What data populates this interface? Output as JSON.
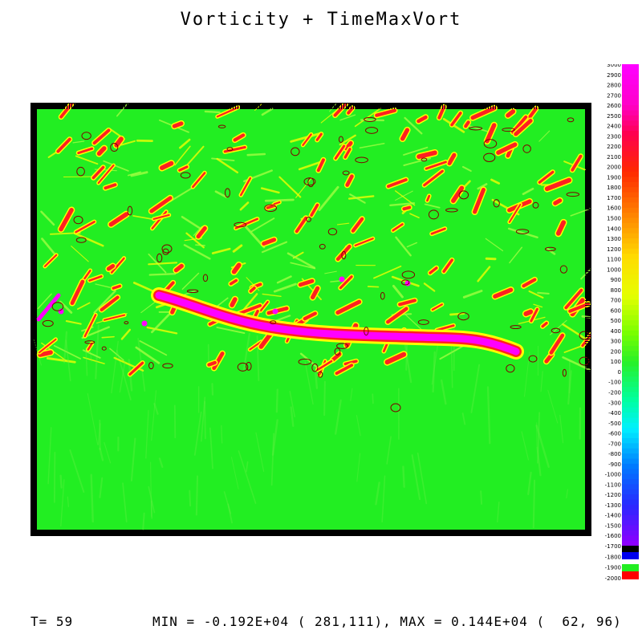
{
  "title": "Vorticity + TimeMaxVort",
  "footer": {
    "time_label": "T= 59",
    "minmax": "MIN = -0.192E+04 ( 281,111), MAX = 0.144E+04 (  62, 96)"
  },
  "colors": {
    "background_field": "#22ee22",
    "high_vorticity": "#ff00ff",
    "moderate_vorticity": "#ff2020",
    "low_vorticity": "#ffff00",
    "contour": "#800000"
  },
  "chart_data": {
    "type": "heatmap",
    "title": "Vorticity + TimeMaxVort",
    "time_step": 59,
    "min": {
      "value": -1920,
      "i": 281,
      "j": 111
    },
    "max": {
      "value": 1440,
      "i": 62,
      "j": 96
    },
    "colorbar": {
      "range": [
        -2000,
        3000
      ],
      "tick_labels": [
        "3000",
        "2900",
        "2800",
        "2700",
        "2600",
        "2500",
        "2400",
        "2300",
        "2200",
        "2100",
        "2000",
        "1900",
        "1800",
        "1700",
        "1600",
        "1500",
        "1400",
        "1300",
        "1200",
        "1100",
        "1000",
        "900",
        "800",
        "700",
        "600",
        "500",
        "400",
        "300",
        "200",
        "100",
        "0",
        "-100",
        "-200",
        "-300",
        "-400",
        "-500",
        "-600",
        "-700",
        "-800",
        "-900",
        "-1000",
        "-1100",
        "-1200",
        "-1300",
        "-1400",
        "-1500",
        "-1600",
        "-1700",
        "-1800",
        "-1900",
        "-2000"
      ],
      "visible_labels": [
        {
          "text": "3000",
          "v": 3000
        },
        {
          "text": "2900",
          "v": 2900
        },
        {
          "text": "2800",
          "v": 2800
        },
        {
          "text": "2700",
          "v": 2700
        },
        {
          "text": "2600",
          "v": 2600
        },
        {
          "text": "2500",
          "v": 2500
        },
        {
          "text": "2400",
          "v": 2400
        },
        {
          "text": "2300",
          "v": 2300
        },
        {
          "text": "2200",
          "v": 2200
        },
        {
          "text": "2100",
          "v": 2100
        },
        {
          "text": "2000",
          "v": 2000
        },
        {
          "text": "1900",
          "v": 1900
        },
        {
          "text": "1800",
          "v": 1800
        },
        {
          "text": "1700",
          "v": 1700
        },
        {
          "text": "1600",
          "v": 1600
        },
        {
          "text": "1500",
          "v": 1500
        },
        {
          "text": "1400",
          "v": 1400
        },
        {
          "text": "1300",
          "v": 1300
        },
        {
          "text": "1200",
          "v": 1200
        },
        {
          "text": "1100",
          "v": 1100
        },
        {
          "text": "1000",
          "v": 1000
        },
        {
          "text": "900",
          "v": 900
        },
        {
          "text": "800",
          "v": 800
        },
        {
          "text": "700",
          "v": 700
        },
        {
          "text": "600",
          "v": 600
        },
        {
          "text": "500",
          "v": 500
        },
        {
          "text": "400",
          "v": 400
        },
        {
          "text": "300",
          "v": 300
        },
        {
          "text": "200",
          "v": 200
        },
        {
          "text": "100",
          "v": 100
        },
        {
          "text": "0",
          "v": 0
        },
        {
          "text": "-100",
          "v": -100
        },
        {
          "text": "-200",
          "v": -200
        },
        {
          "text": "-300",
          "v": -300
        },
        {
          "text": "-400",
          "v": -400
        },
        {
          "text": "-500",
          "v": -500
        },
        {
          "text": "-600",
          "v": -600
        },
        {
          "text": "-700",
          "v": -700
        },
        {
          "text": "-800",
          "v": -800
        },
        {
          "text": "-900",
          "v": -900
        },
        {
          "text": "-1000",
          "v": -1000
        },
        {
          "text": "-1100",
          "v": -1100
        },
        {
          "text": "-1200",
          "v": -1200
        },
        {
          "text": "-1300",
          "v": -1300
        },
        {
          "text": "-1400",
          "v": -1400
        },
        {
          "text": "-1500",
          "v": -1500
        },
        {
          "text": "-1600",
          "v": -1600
        },
        {
          "text": "-1700",
          "v": -1700
        },
        {
          "text": "-1800",
          "v": -1800
        },
        {
          "text": "-1900",
          "v": -1900
        },
        {
          "text": "-2000",
          "v": -2000
        }
      ]
    }
  }
}
